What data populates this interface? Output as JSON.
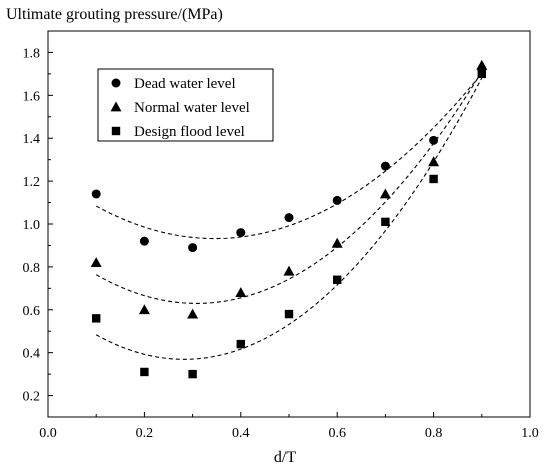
{
  "chart_data": {
    "type": "scatter",
    "title": "Ultimate grouting pressure/(MPa)",
    "xlabel": "d/T",
    "ylabel": "",
    "xlim": [
      0.0,
      1.0
    ],
    "ylim": [
      0.1,
      1.9
    ],
    "x_ticks": [
      0.0,
      0.2,
      0.4,
      0.6,
      0.8,
      1.0
    ],
    "x_tick_labels": [
      "0.0",
      "0.2",
      "0.4",
      "0.6",
      "0.8",
      "1.0"
    ],
    "y_ticks": [
      0.2,
      0.4,
      0.6,
      0.8,
      1.0,
      1.2,
      1.4,
      1.6,
      1.8
    ],
    "y_tick_labels": [
      "0.2",
      "0.4",
      "0.6",
      "0.8",
      "1.0",
      "1.2",
      "1.4",
      "1.6",
      "1.8"
    ],
    "grid": false,
    "legend_position": "top-left",
    "trendline_style": "dashed quadratic fit",
    "series": [
      {
        "name": "Dead water level",
        "marker": "circle",
        "x": [
          0.1,
          0.2,
          0.3,
          0.4,
          0.5,
          0.6,
          0.7,
          0.8,
          0.9
        ],
        "values": [
          1.14,
          0.92,
          0.89,
          0.96,
          1.03,
          1.11,
          1.27,
          1.39,
          1.72
        ]
      },
      {
        "name": "Normal water level",
        "marker": "triangle",
        "x": [
          0.1,
          0.2,
          0.3,
          0.4,
          0.5,
          0.6,
          0.7,
          0.8,
          0.9
        ],
        "values": [
          0.82,
          0.6,
          0.58,
          0.68,
          0.78,
          0.91,
          1.14,
          1.29,
          1.74
        ]
      },
      {
        "name": "Design flood level",
        "marker": "square",
        "x": [
          0.1,
          0.2,
          0.3,
          0.4,
          0.5,
          0.6,
          0.7,
          0.8,
          0.9
        ],
        "values": [
          0.56,
          0.31,
          0.3,
          0.44,
          0.58,
          0.74,
          1.01,
          1.21,
          1.7
        ]
      }
    ]
  }
}
